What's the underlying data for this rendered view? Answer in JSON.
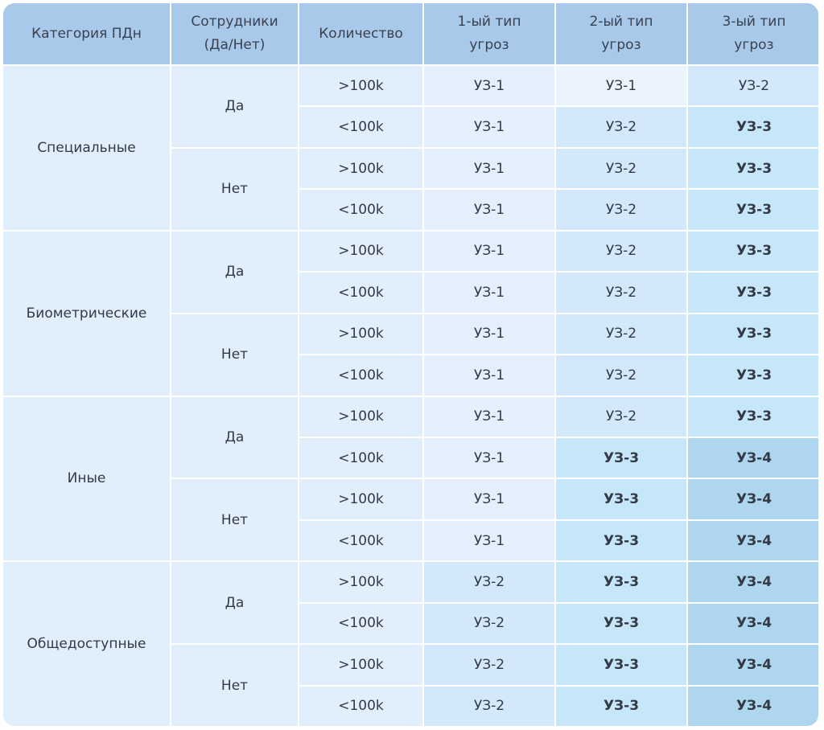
{
  "headers": [
    {
      "line1": "Категория ПДн",
      "line2": ""
    },
    {
      "line1": "Сотрудники",
      "line2": "(Да/Нет)"
    },
    {
      "line1": "Количество",
      "line2": ""
    },
    {
      "line1": "1-ый тип",
      "line2": "угроз"
    },
    {
      "line1": "2-ый тип",
      "line2": "угроз"
    },
    {
      "line1": "3-ый тип",
      "line2": "угроз"
    }
  ],
  "categories": [
    {
      "name": "Специальные",
      "groups": [
        {
          "employees": "Да",
          "rows": [
            {
              "qty": ">100k",
              "t1": "УЗ-1",
              "t2": "УЗ-1",
              "t3": "УЗ-2"
            },
            {
              "qty": "<100k",
              "t1": "УЗ-1",
              "t2": "УЗ-2",
              "t3": "УЗ-3"
            }
          ]
        },
        {
          "employees": "Нет",
          "rows": [
            {
              "qty": ">100k",
              "t1": "УЗ-1",
              "t2": "УЗ-2",
              "t3": "УЗ-3"
            },
            {
              "qty": "<100k",
              "t1": "УЗ-1",
              "t2": "УЗ-2",
              "t3": "УЗ-3"
            }
          ]
        }
      ]
    },
    {
      "name": "Биометрические",
      "groups": [
        {
          "employees": "Да",
          "rows": [
            {
              "qty": ">100k",
              "t1": "УЗ-1",
              "t2": "УЗ-2",
              "t3": "УЗ-3"
            },
            {
              "qty": "<100k",
              "t1": "УЗ-1",
              "t2": "УЗ-2",
              "t3": "УЗ-3"
            }
          ]
        },
        {
          "employees": "Нет",
          "rows": [
            {
              "qty": ">100k",
              "t1": "УЗ-1",
              "t2": "УЗ-2",
              "t3": "УЗ-3"
            },
            {
              "qty": "<100k",
              "t1": "УЗ-1",
              "t2": "УЗ-2",
              "t3": "УЗ-3"
            }
          ]
        }
      ]
    },
    {
      "name": "Иные",
      "groups": [
        {
          "employees": "Да",
          "rows": [
            {
              "qty": ">100k",
              "t1": "УЗ-1",
              "t2": "УЗ-2",
              "t3": "УЗ-3"
            },
            {
              "qty": "<100k",
              "t1": "УЗ-1",
              "t2": "УЗ-3",
              "t3": "УЗ-4"
            }
          ]
        },
        {
          "employees": "Нет",
          "rows": [
            {
              "qty": ">100k",
              "t1": "УЗ-1",
              "t2": "УЗ-3",
              "t3": "УЗ-4"
            },
            {
              "qty": "<100k",
              "t1": "УЗ-1",
              "t2": "УЗ-3",
              "t3": "УЗ-4"
            }
          ]
        }
      ]
    },
    {
      "name": "Общедоступные",
      "groups": [
        {
          "employees": "Да",
          "rows": [
            {
              "qty": ">100k",
              "t1": "УЗ-2",
              "t2": "УЗ-3",
              "t3": "УЗ-4"
            },
            {
              "qty": "<100k",
              "t1": "УЗ-2",
              "t2": "УЗ-3",
              "t3": "УЗ-4"
            }
          ]
        },
        {
          "employees": "Нет",
          "rows": [
            {
              "qty": ">100k",
              "t1": "УЗ-2",
              "t2": "УЗ-3",
              "t3": "УЗ-4"
            },
            {
              "qty": "<100k",
              "t1": "УЗ-2",
              "t2": "УЗ-3",
              "t3": "УЗ-4"
            }
          ]
        }
      ]
    }
  ]
}
